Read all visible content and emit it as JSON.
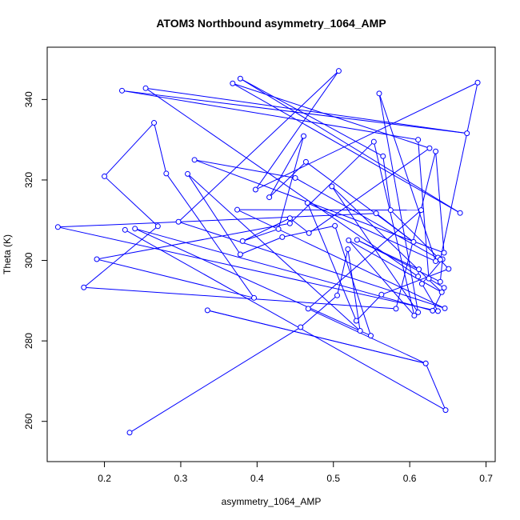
{
  "chart_data": {
    "type": "scatter",
    "title": "ATOM3 Northbound asymmetry_1064_AMP",
    "xlabel": "asymmetry_1064_AMP",
    "ylabel": "Theta (K)",
    "xlim": [
      0.125,
      0.712
    ],
    "ylim": [
      250,
      353
    ],
    "xticks": [
      0.2,
      0.3,
      0.4,
      0.5,
      0.6,
      0.7
    ],
    "xtick_labels": [
      "0.2",
      "0.3",
      "0.4",
      "0.5",
      "0.6",
      "0.7"
    ],
    "yticks": [
      260,
      280,
      300,
      320,
      340
    ],
    "ytick_labels": [
      "260",
      "280",
      "300",
      "320",
      "340"
    ],
    "grid": false,
    "connected": true,
    "color": "#0000ff",
    "points": [
      [
        0.233,
        257.2
      ],
      [
        0.457,
        283.4
      ],
      [
        0.505,
        291.3
      ],
      [
        0.519,
        302.8
      ],
      [
        0.535,
        282.5
      ],
      [
        0.309,
        321.5
      ],
      [
        0.378,
        301.5
      ],
      [
        0.433,
        305.8
      ],
      [
        0.502,
        308.6
      ],
      [
        0.549,
        281.3
      ],
      [
        0.24,
        307.9
      ],
      [
        0.63,
        287.5
      ],
      [
        0.645,
        293.2
      ],
      [
        0.625,
        295.5
      ],
      [
        0.611,
        330.0
      ],
      [
        0.223,
        342.2
      ],
      [
        0.675,
        331.6
      ],
      [
        0.254,
        342.8
      ],
      [
        0.611,
        296.0
      ],
      [
        0.612,
        297.8
      ],
      [
        0.531,
        305.1
      ],
      [
        0.64,
        294.7
      ],
      [
        0.643,
        300.3
      ],
      [
        0.616,
        294.2
      ],
      [
        0.637,
        287.4
      ],
      [
        0.139,
        308.3
      ],
      [
        0.556,
        311.7
      ],
      [
        0.605,
        304.6
      ],
      [
        0.464,
        324.5
      ],
      [
        0.416,
        315.7
      ],
      [
        0.461,
        330.9
      ],
      [
        0.428,
        307.8
      ],
      [
        0.381,
        304.8
      ],
      [
        0.443,
        310.5
      ],
      [
        0.468,
        306.8
      ],
      [
        0.626,
        327.9
      ],
      [
        0.368,
        344.0
      ],
      [
        0.666,
        311.8
      ],
      [
        0.378,
        345.2
      ],
      [
        0.565,
        325.9
      ],
      [
        0.575,
        312.5
      ],
      [
        0.637,
        300.7
      ],
      [
        0.651,
        297.9
      ],
      [
        0.563,
        291.5
      ],
      [
        0.53,
        285.0
      ],
      [
        0.466,
        314.3
      ],
      [
        0.634,
        299.8
      ],
      [
        0.56,
        341.5
      ],
      [
        0.611,
        287.1
      ],
      [
        0.498,
        318.4
      ],
      [
        0.642,
        292.1
      ],
      [
        0.52,
        305.0
      ],
      [
        0.606,
        286.3
      ],
      [
        0.553,
        329.5
      ],
      [
        0.443,
        309.2
      ],
      [
        0.19,
        300.3
      ],
      [
        0.396,
        290.7
      ],
      [
        0.281,
        321.6
      ],
      [
        0.265,
        334.2
      ],
      [
        0.2,
        320.9
      ],
      [
        0.27,
        308.5
      ],
      [
        0.173,
        293.3
      ],
      [
        0.582,
        288.0
      ],
      [
        0.634,
        327.1
      ],
      [
        0.645,
        301.9
      ],
      [
        0.318,
        325.0
      ],
      [
        0.45,
        320.5
      ],
      [
        0.64,
        300.2
      ],
      [
        0.689,
        344.2
      ],
      [
        0.398,
        317.6
      ],
      [
        0.507,
        347.1
      ],
      [
        0.297,
        309.6
      ],
      [
        0.646,
        288.1
      ],
      [
        0.374,
        312.6
      ],
      [
        0.615,
        312.5
      ],
      [
        0.467,
        288.0
      ],
      [
        0.621,
        274.4
      ],
      [
        0.335,
        287.6
      ],
      [
        0.621,
        274.4
      ],
      [
        0.647,
        262.8
      ],
      [
        0.227,
        307.6
      ]
    ]
  }
}
